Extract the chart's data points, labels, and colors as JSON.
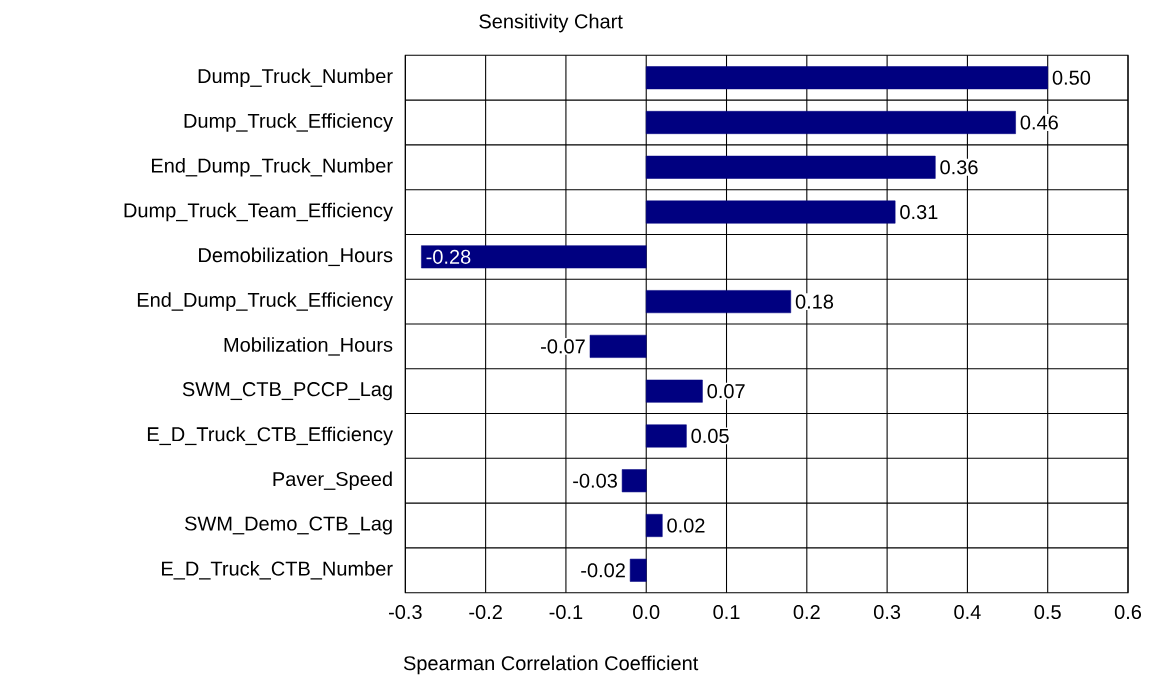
{
  "chart_data": {
    "type": "bar",
    "orientation": "horizontal",
    "title": "Sensitivity Chart",
    "xlabel": "Spearman Correlation Coefficient",
    "categories": [
      "Dump_Truck_Number",
      "Dump_Truck_Efficiency",
      "End_Dump_Truck_Number",
      "Dump_Truck_Team_Efficiency",
      "Demobilization_Hours",
      "End_Dump_Truck_Efficiency",
      "Mobilization_Hours",
      "SWM_CTB_PCCP_Lag",
      "E_D_Truck_CTB_Efficiency",
      "Paver_Speed",
      "SWM_Demo_CTB_Lag",
      "E_D_Truck_CTB_Number"
    ],
    "values": [
      0.5,
      0.46,
      0.36,
      0.31,
      -0.28,
      0.18,
      -0.07,
      0.07,
      0.05,
      -0.03,
      0.02,
      -0.02
    ],
    "value_labels": [
      "0.50",
      "0.46",
      "0.36",
      "0.31",
      "-0.28",
      "0.18",
      "-0.07",
      "0.07",
      "0.05",
      "-0.03",
      "0.02",
      "-0.02"
    ],
    "color": "#000080",
    "xlim": [
      -0.3,
      0.6
    ],
    "xticks": [
      -0.3,
      -0.2,
      -0.1,
      {
        "value": 0,
        "label": "0.0"
      },
      0.1,
      0.2,
      0.3,
      0.4,
      0.5,
      0.6
    ],
    "grid": true
  }
}
